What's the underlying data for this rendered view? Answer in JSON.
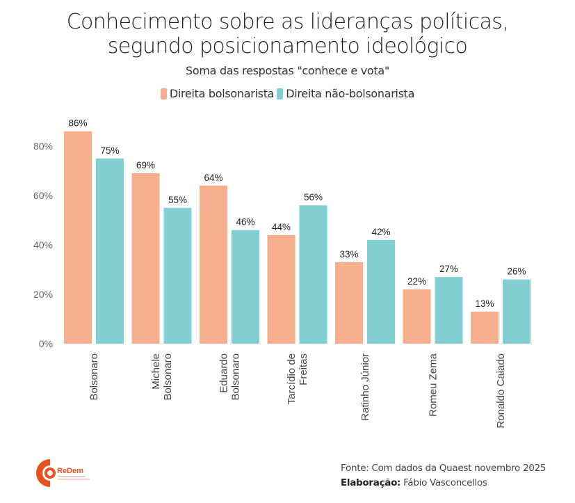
{
  "chart_data": {
    "type": "bar",
    "title_lines": [
      "Conhecimento sobre as lideranças políticas,",
      "segundo posicionamento ideológico"
    ],
    "subtitle": "Soma das respostas \"conhece e vota\"",
    "categories": [
      "Bolsonaro",
      "Michele Bolsonaro",
      "Eduardo Bolsonaro",
      "Tarcídio de Freitas",
      "Ratinho Júnior",
      "Romeu Zema",
      "Ronaldo Caiado"
    ],
    "category_label_lines": [
      [
        "Bolsonaro"
      ],
      [
        "Michele",
        "Bolsonaro"
      ],
      [
        "Eduardo",
        "Bolsonaro"
      ],
      [
        "Tarcídio de",
        "Freitas"
      ],
      [
        "Ratinho Júnior"
      ],
      [
        "Romeu Zema"
      ],
      [
        "Ronaldo Caiado"
      ]
    ],
    "series": [
      {
        "name": "Direita bolsonarista",
        "color": "#f7ae8c",
        "values": [
          86,
          69,
          64,
          44,
          33,
          22,
          13
        ]
      },
      {
        "name": "Direita não-bolsonarista",
        "color": "#82d0d3",
        "values": [
          75,
          55,
          46,
          56,
          42,
          27,
          26
        ]
      }
    ],
    "value_suffix": "%",
    "yticks": [
      0,
      20,
      40,
      60,
      80
    ],
    "ytick_labels": [
      "0%",
      "20%",
      "40%",
      "60%",
      "80%"
    ],
    "ylim": [
      0,
      90
    ],
    "xlabel": "",
    "ylabel": "",
    "grid": false,
    "legend_position": "top-center"
  },
  "legend": [
    {
      "label": "Direita bolsonarista",
      "color": "#f7ae8c"
    },
    {
      "label": "Direita não-bolsonarista",
      "color": "#82d0d3"
    }
  ],
  "footer": {
    "source": "Fonte: Com dados da Quaest novembro 2025",
    "credit_label": "Elaboração:",
    "credit_name": " Fábio Vasconcellos"
  },
  "logo": {
    "text": "ReDem",
    "color": "#e8501f"
  }
}
